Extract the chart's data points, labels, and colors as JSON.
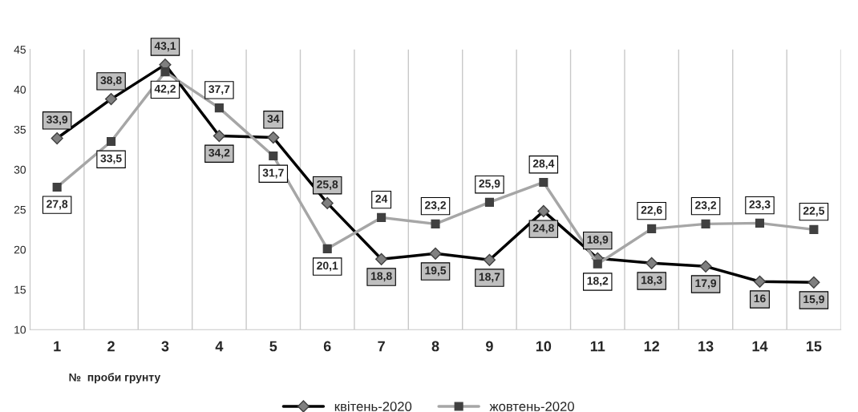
{
  "chart_data": {
    "type": "line",
    "xlabel": "№  проби грунту",
    "categories": [
      "1",
      "2",
      "3",
      "4",
      "5",
      "6",
      "7",
      "8",
      "9",
      "10",
      "11",
      "12",
      "13",
      "14",
      "15"
    ],
    "series": [
      {
        "name": "квітень-2020",
        "color": "#000000",
        "marker": "diamond",
        "values": [
          33.9,
          38.8,
          43.1,
          34.2,
          34,
          25.8,
          18.8,
          19.5,
          18.7,
          24.8,
          18.9,
          18.3,
          17.9,
          16,
          15.9
        ],
        "value_labels": [
          "33,9",
          "38,8",
          "43,1",
          "34,2",
          "34",
          "25,8",
          "18,8",
          "19,5",
          "18,7",
          "24,8",
          "18,9",
          "18,3",
          "17,9",
          "16",
          "15,9"
        ]
      },
      {
        "name": "жовтень-2020",
        "color": "#a6a6a6",
        "marker": "square",
        "values": [
          27.8,
          33.5,
          42.2,
          37.7,
          31.7,
          20.1,
          24,
          23.2,
          25.9,
          28.4,
          18.2,
          22.6,
          23.2,
          23.3,
          22.5
        ],
        "value_labels": [
          "27,8",
          "33,5",
          "42,2",
          "37,7",
          "31,7",
          "20,1",
          "24",
          "23,2",
          "25,9",
          "28,4",
          "18,2",
          "22,6",
          "23,2",
          "23,3",
          "22,5"
        ]
      }
    ],
    "ylim": [
      10,
      45
    ],
    "yticks": [
      10,
      15,
      20,
      25,
      30,
      35,
      40,
      45
    ],
    "grid": "x",
    "legend": "bottom"
  }
}
